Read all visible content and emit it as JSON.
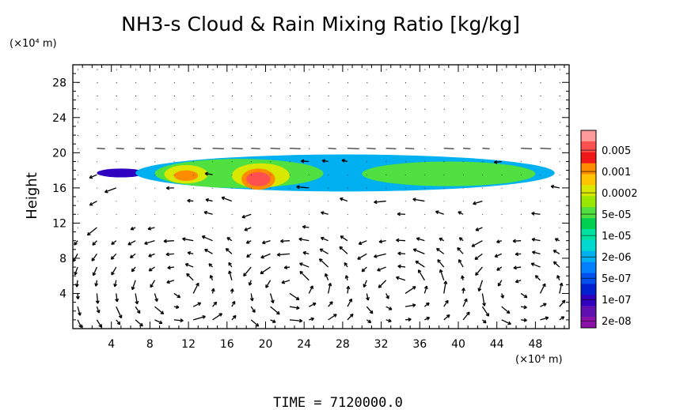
{
  "chart_data": {
    "type": "heatmap",
    "title": "NH3-s Cloud & Rain Mixing Ratio [kg/kg]",
    "ylabel": "Height",
    "xunit": "(×10⁴ m)",
    "yunit": "(×10⁴ m)",
    "xlim": [
      0,
      51.5
    ],
    "ylim": [
      0,
      30
    ],
    "xticks": [
      4,
      8,
      12,
      16,
      20,
      24,
      28,
      32,
      36,
      40,
      44,
      48
    ],
    "yticks": [
      4,
      8,
      12,
      16,
      20,
      24,
      28
    ],
    "footer": "TIME = 7120000.0",
    "colorbar": {
      "labels": [
        "0.005",
        "0.001",
        "0.0002",
        "5e-05",
        "1e-05",
        "2e-06",
        "5e-07",
        "1e-07",
        "2e-08"
      ],
      "colors": [
        "#ff9a9a",
        "#ff5050",
        "#f01818",
        "#ff8c00",
        "#ffc400",
        "#d8e800",
        "#9ae800",
        "#50e040",
        "#00d050",
        "#00e0a0",
        "#00d8d0",
        "#00b0f0",
        "#0080ff",
        "#0050f0",
        "#0020d0",
        "#3000c0",
        "#6010b0",
        "#8a10a8"
      ]
    },
    "cloud_layers": [
      {
        "x": [
          2.5,
          7.5
        ],
        "y": [
          17.2,
          18.2
        ],
        "level": 1
      },
      {
        "x": [
          6.5,
          50
        ],
        "y": [
          15.6,
          19.8
        ],
        "level": 2
      },
      {
        "x": [
          8.5,
          26
        ],
        "y": [
          16.0,
          19.3
        ],
        "level": 3
      },
      {
        "x": [
          30,
          48
        ],
        "y": [
          16.2,
          19.0
        ],
        "level": 3
      },
      {
        "x": [
          9.5,
          14
        ],
        "y": [
          16.5,
          18.6
        ],
        "level": 4
      },
      {
        "x": [
          16.5,
          22.5
        ],
        "y": [
          16.0,
          18.8
        ],
        "level": 4
      },
      {
        "x": [
          10.5,
          13
        ],
        "y": [
          16.8,
          18.0
        ],
        "level": 6
      },
      {
        "x": [
          17.5,
          21
        ],
        "y": [
          15.8,
          18.2
        ],
        "level": 6
      },
      {
        "x": [
          18,
          20.5
        ],
        "y": [
          16.2,
          17.8
        ],
        "level": 8
      }
    ]
  }
}
